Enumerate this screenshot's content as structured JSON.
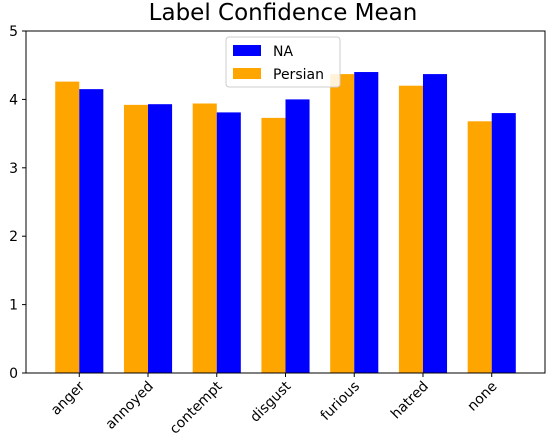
{
  "chart_data": {
    "type": "bar",
    "title": "Label Confidence Mean",
    "xlabel": "",
    "ylabel": "",
    "categories": [
      "anger",
      "annoyed",
      "contempt",
      "disgust",
      "furious",
      "hatred",
      "none"
    ],
    "series": [
      {
        "name": "Persian",
        "color": "#ffa500",
        "values": [
          4.26,
          3.92,
          3.94,
          3.73,
          4.37,
          4.2,
          3.68
        ]
      },
      {
        "name": "NA",
        "color": "#0000ff",
        "values": [
          4.15,
          3.93,
          3.81,
          4.0,
          4.4,
          4.37,
          3.8
        ]
      }
    ],
    "ylim": [
      0,
      5
    ],
    "yticks": [
      "0",
      "1",
      "2",
      "3",
      "4",
      "5"
    ],
    "legend": {
      "position": "top-center",
      "order": [
        "NA",
        "Persian"
      ]
    },
    "grid": false
  }
}
